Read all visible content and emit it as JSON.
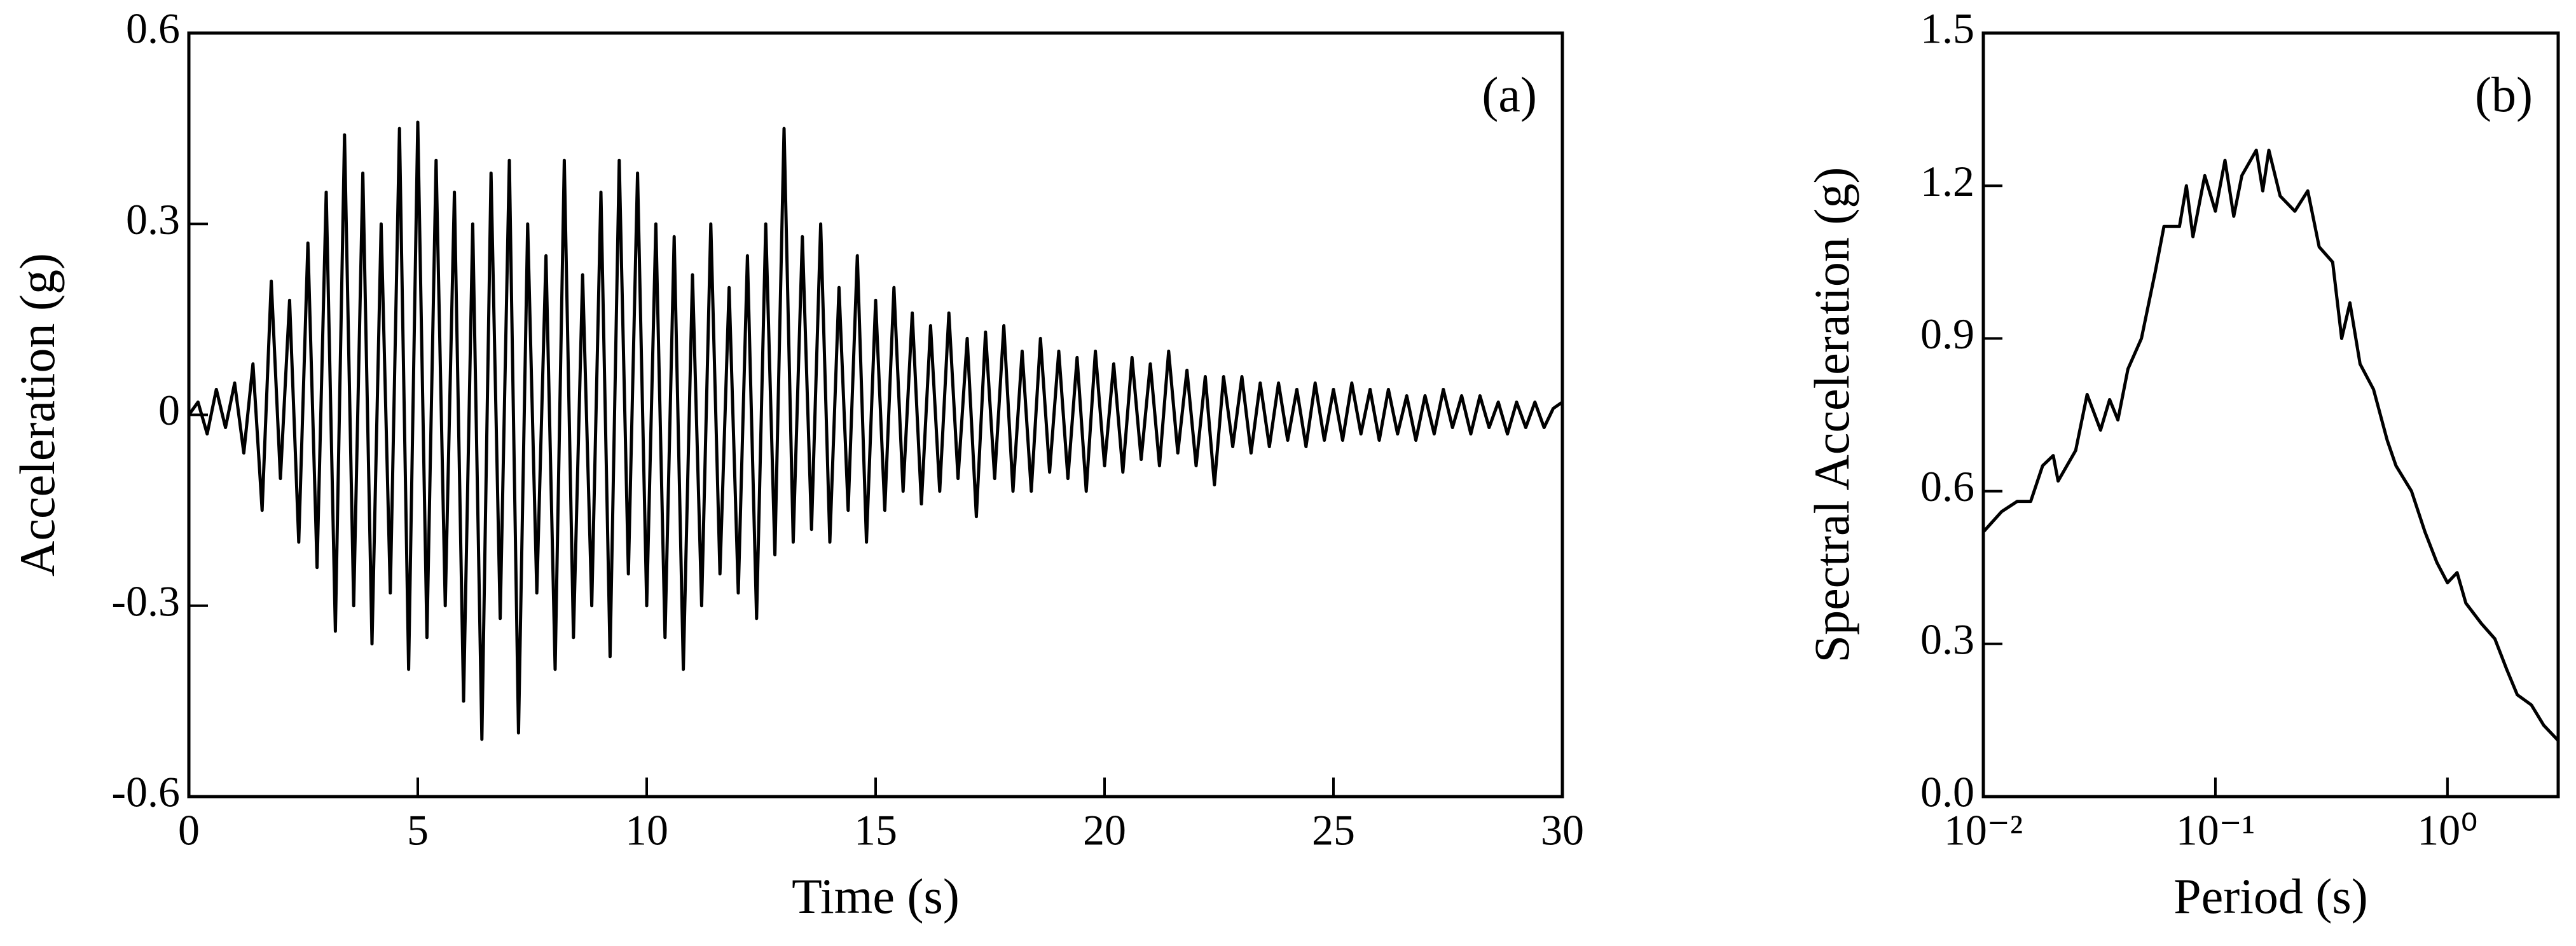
{
  "chart_data": [
    {
      "type": "line",
      "xlabel": "Time (s)",
      "ylabel": "Acceleration (g)",
      "annotation": "(a)",
      "color": "#000000",
      "x": [
        0,
        0.2,
        0.4,
        0.6,
        0.8,
        1,
        1.2,
        1.4,
        1.6,
        1.8,
        2,
        2.2,
        2.4,
        2.6,
        2.8,
        3,
        3.2,
        3.4,
        3.6,
        3.8,
        4,
        4.2,
        4.4,
        4.6,
        4.8,
        5,
        5.2,
        5.4,
        5.6,
        5.8,
        6,
        6.2,
        6.4,
        6.6,
        6.8,
        7,
        7.2,
        7.4,
        7.6,
        7.8,
        8,
        8.2,
        8.4,
        8.6,
        8.8,
        9,
        9.2,
        9.4,
        9.6,
        9.8,
        10,
        10.2,
        10.4,
        10.6,
        10.8,
        11,
        11.2,
        11.4,
        11.6,
        11.8,
        12,
        12.2,
        12.4,
        12.6,
        12.8,
        13,
        13.2,
        13.4,
        13.6,
        13.8,
        14,
        14.2,
        14.4,
        14.6,
        14.8,
        15,
        15.2,
        15.4,
        15.6,
        15.8,
        16,
        16.2,
        16.4,
        16.6,
        16.8,
        17,
        17.2,
        17.4,
        17.6,
        17.8,
        18,
        18.2,
        18.4,
        18.6,
        18.8,
        19,
        19.2,
        19.4,
        19.6,
        19.8,
        20,
        20.2,
        20.4,
        20.6,
        20.8,
        21,
        21.2,
        21.4,
        21.6,
        21.8,
        22,
        22.2,
        22.4,
        22.6,
        22.8,
        23,
        23.2,
        23.4,
        23.6,
        23.8,
        24,
        24.2,
        24.4,
        24.6,
        24.8,
        25,
        25.2,
        25.4,
        25.6,
        25.8,
        26,
        26.2,
        26.4,
        26.6,
        26.8,
        27,
        27.2,
        27.4,
        27.6,
        27.8,
        28,
        28.2,
        28.4,
        28.6,
        28.8,
        29,
        29.2,
        29.4,
        29.6,
        29.8,
        30
      ],
      "values": [
        0,
        0.02,
        -0.03,
        0.04,
        -0.02,
        0.05,
        -0.06,
        0.08,
        -0.15,
        0.21,
        -0.1,
        0.18,
        -0.2,
        0.27,
        -0.24,
        0.35,
        -0.34,
        0.44,
        -0.3,
        0.38,
        -0.36,
        0.3,
        -0.28,
        0.45,
        -0.4,
        0.46,
        -0.35,
        0.4,
        -0.3,
        0.35,
        -0.45,
        0.3,
        -0.51,
        0.38,
        -0.32,
        0.4,
        -0.5,
        0.3,
        -0.28,
        0.25,
        -0.4,
        0.4,
        -0.35,
        0.22,
        -0.3,
        0.35,
        -0.38,
        0.4,
        -0.25,
        0.38,
        -0.3,
        0.3,
        -0.35,
        0.28,
        -0.4,
        0.22,
        -0.3,
        0.3,
        -0.25,
        0.2,
        -0.28,
        0.25,
        -0.32,
        0.3,
        -0.22,
        0.45,
        -0.2,
        0.28,
        -0.18,
        0.3,
        -0.2,
        0.2,
        -0.15,
        0.25,
        -0.2,
        0.18,
        -0.15,
        0.2,
        -0.12,
        0.16,
        -0.14,
        0.14,
        -0.12,
        0.16,
        -0.1,
        0.12,
        -0.16,
        0.13,
        -0.1,
        0.14,
        -0.12,
        0.1,
        -0.12,
        0.12,
        -0.09,
        0.1,
        -0.1,
        0.09,
        -0.12,
        0.1,
        -0.08,
        0.08,
        -0.09,
        0.09,
        -0.07,
        0.08,
        -0.08,
        0.1,
        -0.06,
        0.07,
        -0.08,
        0.06,
        -0.11,
        0.06,
        -0.05,
        0.06,
        -0.06,
        0.05,
        -0.05,
        0.05,
        -0.04,
        0.04,
        -0.05,
        0.05,
        -0.04,
        0.04,
        -0.04,
        0.05,
        -0.03,
        0.04,
        -0.04,
        0.04,
        -0.03,
        0.03,
        -0.04,
        0.03,
        -0.03,
        0.04,
        -0.02,
        0.03,
        -0.03,
        0.03,
        -0.02,
        0.02,
        -0.03,
        0.02,
        -0.02,
        0.02,
        -0.02,
        0.01,
        0.02
      ],
      "xlim": [
        0,
        30
      ],
      "xticks": [
        0,
        5,
        10,
        15,
        20,
        25,
        30
      ],
      "ylim": [
        -0.6,
        0.6
      ],
      "yticks": [
        -0.6,
        -0.3,
        0,
        0.3,
        0.6
      ]
    },
    {
      "type": "line",
      "xlabel": "Period (s)",
      "ylabel": "Spectral Acceleration (g)",
      "annotation": "(b)",
      "color": "#000000",
      "xscale": "log",
      "x": [
        0.01,
        0.012,
        0.014,
        0.016,
        0.018,
        0.02,
        0.021,
        0.025,
        0.028,
        0.032,
        0.035,
        0.038,
        0.042,
        0.048,
        0.055,
        0.06,
        0.07,
        0.075,
        0.08,
        0.09,
        0.1,
        0.11,
        0.12,
        0.13,
        0.15,
        0.16,
        0.17,
        0.19,
        0.22,
        0.25,
        0.28,
        0.32,
        0.35,
        0.38,
        0.42,
        0.48,
        0.55,
        0.6,
        0.7,
        0.8,
        0.9,
        1.0,
        1.1,
        1.2,
        1.4,
        1.6,
        1.8,
        2.0,
        2.3,
        2.6,
        3.0
      ],
      "values": [
        0.52,
        0.56,
        0.58,
        0.58,
        0.65,
        0.67,
        0.62,
        0.68,
        0.79,
        0.72,
        0.78,
        0.74,
        0.84,
        0.9,
        1.03,
        1.12,
        1.12,
        1.2,
        1.1,
        1.22,
        1.15,
        1.25,
        1.14,
        1.22,
        1.27,
        1.19,
        1.27,
        1.18,
        1.15,
        1.19,
        1.08,
        1.05,
        0.9,
        0.97,
        0.85,
        0.8,
        0.7,
        0.65,
        0.6,
        0.52,
        0.46,
        0.42,
        0.44,
        0.38,
        0.34,
        0.31,
        0.25,
        0.2,
        0.18,
        0.14,
        0.11
      ],
      "xlim": [
        0.01,
        3.0
      ],
      "xticks": [
        {
          "value": 0.01,
          "label": "10⁻²"
        },
        {
          "value": 0.1,
          "label": "10⁻¹"
        },
        {
          "value": 1,
          "label": "10⁰"
        }
      ],
      "ylim": [
        0,
        1.5
      ],
      "yticks": [
        {
          "value": 0,
          "label": "0.0"
        },
        0.3,
        0.6,
        0.9,
        1.2,
        1.5
      ]
    }
  ]
}
